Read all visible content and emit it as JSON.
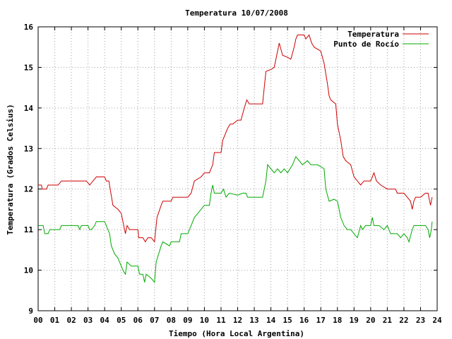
{
  "chart_data": {
    "type": "line",
    "title": "Temperatura 10/07/2008",
    "xlabel": "Tiempo (Hora Local Argentina)",
    "ylabel": "Temperatura (Grados Celsius)",
    "xlim": [
      0,
      24
    ],
    "ylim": [
      9,
      16
    ],
    "xticks": [
      "00",
      "01",
      "02",
      "03",
      "04",
      "05",
      "06",
      "07",
      "08",
      "09",
      "10",
      "11",
      "12",
      "13",
      "14",
      "15",
      "16",
      "17",
      "18",
      "19",
      "20",
      "21",
      "22",
      "23",
      "24"
    ],
    "yticks": [
      "9",
      "10",
      "11",
      "12",
      "13",
      "14",
      "15",
      "16"
    ],
    "grid": true,
    "legend_position": "top-right",
    "series": [
      {
        "name": "Temperatura",
        "color": "#cc0000",
        "points": [
          [
            0,
            12.1
          ],
          [
            0.2,
            12.1
          ],
          [
            0.25,
            12.0
          ],
          [
            0.5,
            12.0
          ],
          [
            0.6,
            12.1
          ],
          [
            1.2,
            12.1
          ],
          [
            1.4,
            12.2
          ],
          [
            2.9,
            12.2
          ],
          [
            3.1,
            12.1
          ],
          [
            3.3,
            12.2
          ],
          [
            3.5,
            12.3
          ],
          [
            4.0,
            12.3
          ],
          [
            4.1,
            12.2
          ],
          [
            4.25,
            12.2
          ],
          [
            4.5,
            11.6
          ],
          [
            4.8,
            11.5
          ],
          [
            5.0,
            11.4
          ],
          [
            5.15,
            11.1
          ],
          [
            5.25,
            10.9
          ],
          [
            5.35,
            11.1
          ],
          [
            5.5,
            11.0
          ],
          [
            6.0,
            11.0
          ],
          [
            6.05,
            10.8
          ],
          [
            6.3,
            10.8
          ],
          [
            6.45,
            10.7
          ],
          [
            6.6,
            10.8
          ],
          [
            6.8,
            10.8
          ],
          [
            7.0,
            10.7
          ],
          [
            7.15,
            11.3
          ],
          [
            7.4,
            11.6
          ],
          [
            7.5,
            11.7
          ],
          [
            8.0,
            11.7
          ],
          [
            8.1,
            11.8
          ],
          [
            9.0,
            11.8
          ],
          [
            9.2,
            11.9
          ],
          [
            9.4,
            12.2
          ],
          [
            9.8,
            12.3
          ],
          [
            10.0,
            12.4
          ],
          [
            10.3,
            12.4
          ],
          [
            10.5,
            12.6
          ],
          [
            10.6,
            12.9
          ],
          [
            11.0,
            12.9
          ],
          [
            11.1,
            13.2
          ],
          [
            11.4,
            13.5
          ],
          [
            11.55,
            13.6
          ],
          [
            11.7,
            13.6
          ],
          [
            12.0,
            13.7
          ],
          [
            12.2,
            13.7
          ],
          [
            12.4,
            14.0
          ],
          [
            12.55,
            14.2
          ],
          [
            12.7,
            14.1
          ],
          [
            13.5,
            14.1
          ],
          [
            13.7,
            14.9
          ],
          [
            14.0,
            14.95
          ],
          [
            14.2,
            15.0
          ],
          [
            14.4,
            15.4
          ],
          [
            14.5,
            15.6
          ],
          [
            14.7,
            15.3
          ],
          [
            15.0,
            15.25
          ],
          [
            15.2,
            15.2
          ],
          [
            15.4,
            15.5
          ],
          [
            15.5,
            15.7
          ],
          [
            15.6,
            15.8
          ],
          [
            16.0,
            15.8
          ],
          [
            16.1,
            15.7
          ],
          [
            16.3,
            15.8
          ],
          [
            16.45,
            15.6
          ],
          [
            16.6,
            15.5
          ],
          [
            17.0,
            15.4
          ],
          [
            17.2,
            15.1
          ],
          [
            17.4,
            14.6
          ],
          [
            17.5,
            14.3
          ],
          [
            17.6,
            14.2
          ],
          [
            17.9,
            14.1
          ],
          [
            18.0,
            13.6
          ],
          [
            18.2,
            13.2
          ],
          [
            18.35,
            12.8
          ],
          [
            18.5,
            12.7
          ],
          [
            18.8,
            12.6
          ],
          [
            19.0,
            12.3
          ],
          [
            19.2,
            12.2
          ],
          [
            19.4,
            12.1
          ],
          [
            19.6,
            12.2
          ],
          [
            20.0,
            12.2
          ],
          [
            20.1,
            12.3
          ],
          [
            20.2,
            12.4
          ],
          [
            20.35,
            12.2
          ],
          [
            20.6,
            12.1
          ],
          [
            21.0,
            12.0
          ],
          [
            21.5,
            12.0
          ],
          [
            21.6,
            11.9
          ],
          [
            22.0,
            11.9
          ],
          [
            22.2,
            11.8
          ],
          [
            22.4,
            11.7
          ],
          [
            22.5,
            11.5
          ],
          [
            22.6,
            11.7
          ],
          [
            22.7,
            11.8
          ],
          [
            23.0,
            11.8
          ],
          [
            23.3,
            11.9
          ],
          [
            23.45,
            11.9
          ],
          [
            23.5,
            11.8
          ],
          [
            23.6,
            11.6
          ],
          [
            23.7,
            11.8
          ]
        ]
      },
      {
        "name": "Punto de Rocío",
        "color": "#00aa00",
        "points": [
          [
            0,
            11.1
          ],
          [
            0.3,
            11.1
          ],
          [
            0.4,
            10.9
          ],
          [
            0.6,
            10.9
          ],
          [
            0.7,
            11.0
          ],
          [
            1.3,
            11.0
          ],
          [
            1.4,
            11.1
          ],
          [
            2.4,
            11.1
          ],
          [
            2.5,
            11.0
          ],
          [
            2.6,
            11.1
          ],
          [
            3.0,
            11.1
          ],
          [
            3.1,
            11.0
          ],
          [
            3.2,
            11.0
          ],
          [
            3.4,
            11.1
          ],
          [
            3.5,
            11.2
          ],
          [
            4.0,
            11.2
          ],
          [
            4.1,
            11.1
          ],
          [
            4.3,
            10.9
          ],
          [
            4.4,
            10.6
          ],
          [
            4.6,
            10.4
          ],
          [
            4.8,
            10.3
          ],
          [
            5.0,
            10.1
          ],
          [
            5.1,
            10.0
          ],
          [
            5.25,
            9.9
          ],
          [
            5.35,
            10.2
          ],
          [
            5.6,
            10.1
          ],
          [
            5.8,
            10.1
          ],
          [
            6.0,
            10.1
          ],
          [
            6.1,
            9.9
          ],
          [
            6.3,
            9.9
          ],
          [
            6.4,
            9.7
          ],
          [
            6.5,
            9.9
          ],
          [
            6.8,
            9.8
          ],
          [
            7.0,
            9.7
          ],
          [
            7.1,
            10.2
          ],
          [
            7.4,
            10.6
          ],
          [
            7.5,
            10.7
          ],
          [
            7.9,
            10.6
          ],
          [
            8.0,
            10.7
          ],
          [
            8.5,
            10.7
          ],
          [
            8.6,
            10.9
          ],
          [
            9.0,
            10.9
          ],
          [
            9.2,
            11.1
          ],
          [
            9.4,
            11.3
          ],
          [
            9.8,
            11.5
          ],
          [
            10.0,
            11.6
          ],
          [
            10.3,
            11.6
          ],
          [
            10.4,
            11.9
          ],
          [
            10.5,
            12.1
          ],
          [
            10.6,
            11.9
          ],
          [
            11.0,
            11.9
          ],
          [
            11.15,
            12.0
          ],
          [
            11.3,
            11.8
          ],
          [
            11.5,
            11.9
          ],
          [
            12.0,
            11.85
          ],
          [
            12.3,
            11.9
          ],
          [
            12.5,
            11.9
          ],
          [
            12.6,
            11.8
          ],
          [
            13.5,
            11.8
          ],
          [
            13.7,
            12.2
          ],
          [
            13.8,
            12.6
          ],
          [
            14.0,
            12.5
          ],
          [
            14.2,
            12.4
          ],
          [
            14.4,
            12.5
          ],
          [
            14.6,
            12.4
          ],
          [
            14.8,
            12.5
          ],
          [
            15.0,
            12.4
          ],
          [
            15.3,
            12.6
          ],
          [
            15.5,
            12.8
          ],
          [
            15.7,
            12.7
          ],
          [
            15.9,
            12.6
          ],
          [
            16.2,
            12.7
          ],
          [
            16.4,
            12.6
          ],
          [
            16.6,
            12.6
          ],
          [
            16.8,
            12.6
          ],
          [
            17.0,
            12.55
          ],
          [
            17.2,
            12.5
          ],
          [
            17.3,
            12.0
          ],
          [
            17.5,
            11.7
          ],
          [
            17.8,
            11.75
          ],
          [
            18.0,
            11.7
          ],
          [
            18.2,
            11.3
          ],
          [
            18.4,
            11.1
          ],
          [
            18.6,
            11.0
          ],
          [
            18.8,
            11.0
          ],
          [
            19.0,
            10.9
          ],
          [
            19.2,
            10.8
          ],
          [
            19.4,
            11.1
          ],
          [
            19.5,
            11.0
          ],
          [
            19.7,
            11.1
          ],
          [
            20.0,
            11.1
          ],
          [
            20.1,
            11.3
          ],
          [
            20.2,
            11.1
          ],
          [
            20.5,
            11.1
          ],
          [
            20.8,
            11.0
          ],
          [
            21.0,
            11.1
          ],
          [
            21.2,
            10.9
          ],
          [
            21.4,
            10.9
          ],
          [
            21.6,
            10.9
          ],
          [
            21.8,
            10.8
          ],
          [
            22.0,
            10.9
          ],
          [
            22.2,
            10.8
          ],
          [
            22.3,
            10.7
          ],
          [
            22.5,
            11.0
          ],
          [
            22.6,
            11.1
          ],
          [
            23.3,
            11.1
          ],
          [
            23.45,
            11.0
          ],
          [
            23.55,
            10.8
          ],
          [
            23.65,
            11.0
          ],
          [
            23.7,
            11.2
          ]
        ]
      }
    ]
  }
}
